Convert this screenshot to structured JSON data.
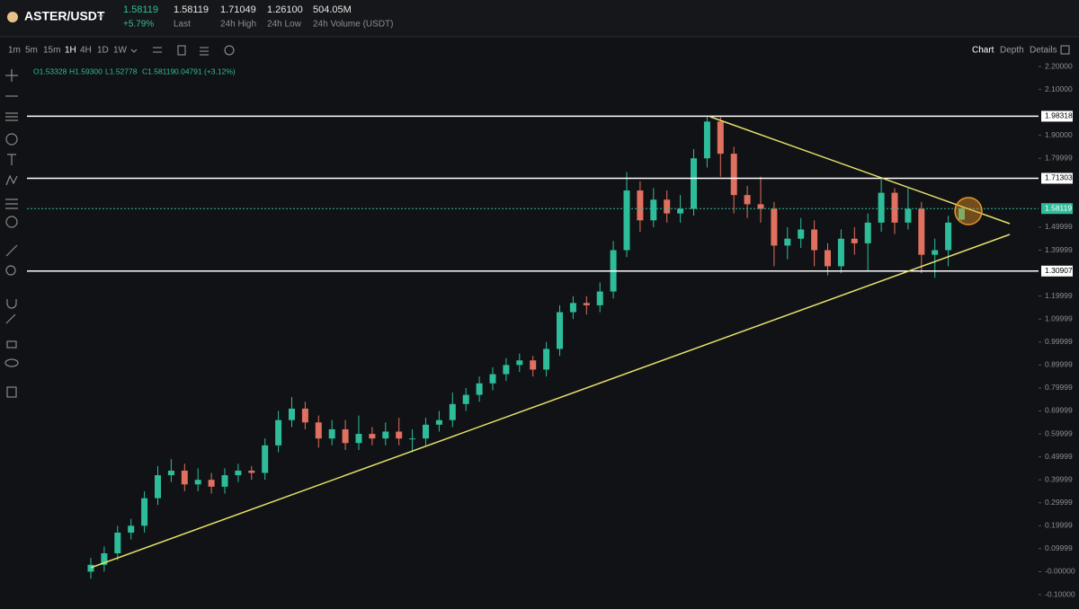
{
  "header": {
    "pair": "ASTER/USDT",
    "price": "1.58119",
    "change": "+5.79%",
    "stats": [
      {
        "value": "1.58119",
        "label": "Last"
      },
      {
        "value": "1.71049",
        "label": "24h High"
      },
      {
        "value": "1.26100",
        "label": "24h Low"
      },
      {
        "value": "504.05M",
        "label": "24h Volume (USDT)"
      }
    ]
  },
  "toolbar": {
    "intervals": [
      "1m",
      "5m",
      "15m",
      "1H",
      "4H",
      "1D",
      "1W"
    ],
    "views": [
      "Chart",
      "Depth",
      "Details"
    ]
  },
  "legend": [
    "O1.53328",
    "H1.59300",
    "L1.52778",
    "C1.58119",
    "0.04791",
    "(+3.12%)"
  ],
  "chart_data": {
    "type": "candlestick",
    "up_color": "#2ebd9b",
    "down_color": "#e0705f",
    "ylim": [
      -0.1,
      2.2
    ],
    "yticks": [
      {
        "value": 2.2,
        "label": "2.20000"
      },
      {
        "value": 2.1,
        "label": "2.10000"
      },
      {
        "value": 1.9,
        "label": "1.90000"
      },
      1.79999,
      1.49999,
      1.39999,
      1.19999,
      1.09999,
      0.99999,
      0.89999,
      0.79999,
      0.69999,
      0.59999,
      0.49999,
      0.39999,
      0.29999,
      0.19999,
      0.09999,
      {
        "value": 0,
        "label": "-0.00000"
      },
      {
        "value": -0.1,
        "label": "-0.10000"
      }
    ],
    "levels": [
      1.98318,
      1.71303,
      1.30907
    ],
    "last": 1.58119,
    "open": [
      0.0,
      0.03,
      0.08,
      0.17,
      0.2,
      0.32,
      0.42,
      0.44,
      0.38,
      0.4,
      0.37,
      0.42,
      0.44,
      0.43,
      0.55,
      0.66,
      0.71,
      0.65,
      0.58,
      0.62,
      0.56,
      0.6,
      0.58,
      0.61,
      0.58,
      0.58,
      0.64,
      0.66,
      0.73,
      0.77,
      0.82,
      0.86,
      0.9,
      0.92,
      0.88,
      0.97,
      1.13,
      1.17,
      1.16,
      1.22,
      1.4,
      1.66,
      1.53,
      1.62,
      1.56,
      1.58,
      1.8,
      1.96,
      1.82,
      1.64,
      1.6,
      1.58,
      1.42,
      1.45,
      1.49,
      1.4,
      1.33,
      1.45,
      1.43,
      1.52,
      1.65,
      1.52,
      1.58,
      1.38,
      1.4,
      1.53328
    ],
    "high": [
      0.06,
      0.11,
      0.2,
      0.23,
      0.35,
      0.46,
      0.49,
      0.47,
      0.45,
      0.43,
      0.45,
      0.47,
      0.46,
      0.58,
      0.7,
      0.76,
      0.74,
      0.68,
      0.66,
      0.66,
      0.68,
      0.63,
      0.65,
      0.67,
      0.62,
      0.67,
      0.7,
      0.78,
      0.8,
      0.85,
      0.89,
      0.93,
      0.95,
      0.94,
      1.0,
      1.16,
      1.2,
      1.2,
      1.26,
      1.44,
      1.74,
      1.7,
      1.67,
      1.66,
      1.64,
      1.84,
      1.98,
      1.98,
      1.85,
      1.68,
      1.72,
      1.61,
      1.5,
      1.54,
      1.53,
      1.43,
      1.49,
      1.5,
      1.56,
      1.71,
      1.67,
      1.67,
      1.61,
      1.45,
      1.55,
      1.593
    ],
    "low": [
      -0.03,
      0.0,
      0.05,
      0.14,
      0.17,
      0.29,
      0.39,
      0.35,
      0.35,
      0.34,
      0.34,
      0.39,
      0.4,
      0.4,
      0.52,
      0.63,
      0.62,
      0.54,
      0.55,
      0.53,
      0.53,
      0.55,
      0.55,
      0.55,
      0.52,
      0.55,
      0.61,
      0.63,
      0.7,
      0.74,
      0.79,
      0.83,
      0.87,
      0.85,
      0.85,
      0.94,
      1.1,
      1.12,
      1.13,
      1.19,
      1.37,
      1.48,
      1.5,
      1.52,
      1.52,
      1.55,
      1.76,
      1.72,
      1.56,
      1.54,
      1.52,
      1.33,
      1.36,
      1.41,
      1.33,
      1.29,
      1.3,
      1.38,
      1.31,
      1.48,
      1.47,
      1.49,
      1.3,
      1.28,
      1.33,
      1.52778
    ],
    "close": [
      0.03,
      0.08,
      0.17,
      0.2,
      0.32,
      0.42,
      0.44,
      0.38,
      0.4,
      0.37,
      0.42,
      0.44,
      0.43,
      0.55,
      0.66,
      0.71,
      0.65,
      0.58,
      0.62,
      0.56,
      0.6,
      0.58,
      0.61,
      0.58,
      0.58,
      0.64,
      0.66,
      0.73,
      0.77,
      0.82,
      0.86,
      0.9,
      0.92,
      0.88,
      0.97,
      1.13,
      1.17,
      1.16,
      1.22,
      1.4,
      1.66,
      1.53,
      1.62,
      1.56,
      1.58,
      1.8,
      1.96,
      1.82,
      1.64,
      1.6,
      1.58,
      1.42,
      1.45,
      1.49,
      1.4,
      1.33,
      1.45,
      1.43,
      1.52,
      1.65,
      1.52,
      1.58,
      1.38,
      1.4,
      1.52,
      1.58119
    ]
  }
}
